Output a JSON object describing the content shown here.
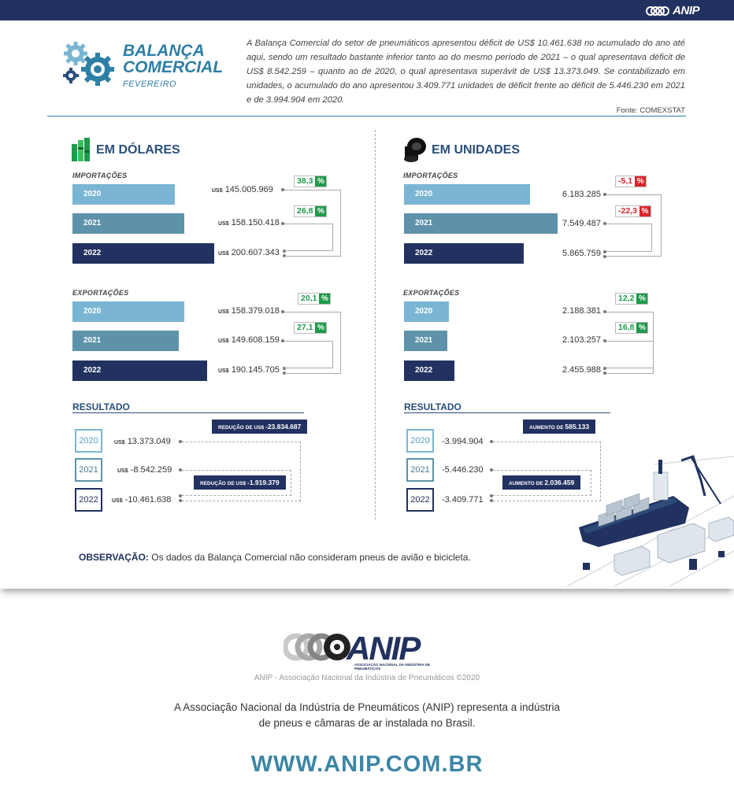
{
  "brand": {
    "logo_text": "ANIP",
    "logo_tagline": "ASSOCIAÇÃO NACIONAL DA INDÚSTRIA DE PNEUMÁTICOS"
  },
  "header": {
    "title_line1": "BALANÇA",
    "title_line2": "COMERCIAL",
    "subtitle": "FEVEREIRO",
    "intro": "A Balança Comercial do setor de pneumáticos apresentou déficit de US$ 10.461.638 no acumulado do ano até aqui, sendo um resultado bastante inferior tanto ao do mesmo período de 2021 – o qual apresentava déficit de US$ 8.542.259 – quanto ao de 2020, o qual apresentava superávit de US$ 13.373.049. Se contabilizado em unidades, o acumulado do ano apresentou 3.409.771 unidades de déficit frente ao déficit de 5.446.230 em 2021 e de 3.994.904 em 2020.",
    "source": "Fonte: COMEXSTAT"
  },
  "dolares": {
    "title": "EM DÓLARES",
    "currency": "US$",
    "imports": {
      "label": "IMPORTAÇÕES",
      "rows": [
        {
          "year": "2020",
          "value": "145.005.969",
          "amount": 145005969
        },
        {
          "year": "2021",
          "value": "158.150.418",
          "amount": 158150418
        },
        {
          "year": "2022",
          "value": "200.607.343",
          "amount": 200607343
        }
      ],
      "changes": [
        {
          "value": "38,3",
          "symbol": "%",
          "trend": "up"
        },
        {
          "value": "26,8",
          "symbol": "%",
          "trend": "up"
        }
      ]
    },
    "exports": {
      "label": "EXPORTAÇÕES",
      "rows": [
        {
          "year": "2020",
          "value": "158.379.018",
          "amount": 158379018
        },
        {
          "year": "2021",
          "value": "149.608.159",
          "amount": 149608159
        },
        {
          "year": "2022",
          "value": "190.145.705",
          "amount": 190145705
        }
      ],
      "changes": [
        {
          "value": "20,1",
          "symbol": "%",
          "trend": "up"
        },
        {
          "value": "27,1",
          "symbol": "%",
          "trend": "up"
        }
      ]
    },
    "result": {
      "label": "RESULTADO",
      "rows": [
        {
          "year": "2020",
          "value": "13.373.049"
        },
        {
          "year": "2021",
          "value": "-8.542.259"
        },
        {
          "year": "2022",
          "value": "-10.461.638"
        }
      ],
      "tags": [
        {
          "prefix": "REDUÇÃO DE",
          "currency": "US$",
          "value": "-23.834.687"
        },
        {
          "prefix": "REDUÇÃO DE",
          "currency": "US$",
          "value": "-1.919.379"
        }
      ]
    }
  },
  "unidades": {
    "title": "EM UNIDADES",
    "imports": {
      "label": "IMPORTAÇÕES",
      "rows": [
        {
          "year": "2020",
          "value": "6.183.285",
          "amount": 6183285
        },
        {
          "year": "2021",
          "value": "7.549.487",
          "amount": 7549487
        },
        {
          "year": "2022",
          "value": "5.865.759",
          "amount": 5865759
        }
      ],
      "changes": [
        {
          "value": "-5,1",
          "symbol": "%",
          "trend": "down"
        },
        {
          "value": "-22,3",
          "symbol": "%",
          "trend": "down"
        }
      ]
    },
    "exports": {
      "label": "EXPORTAÇÕES",
      "rows": [
        {
          "year": "2020",
          "value": "2.188.381",
          "amount": 2188381
        },
        {
          "year": "2021",
          "value": "2.103.257",
          "amount": 2103257
        },
        {
          "year": "2022",
          "value": "2.455.988",
          "amount": 2455988
        }
      ],
      "changes": [
        {
          "value": "12,2",
          "symbol": "%",
          "trend": "up"
        },
        {
          "value": "16,8",
          "symbol": "%",
          "trend": "up"
        }
      ]
    },
    "result": {
      "label": "RESULTADO",
      "rows": [
        {
          "year": "2020",
          "value": "-3.994.904"
        },
        {
          "year": "2021",
          "value": "-5.446.230"
        },
        {
          "year": "2022",
          "value": "-3.409.771"
        }
      ],
      "tags": [
        {
          "prefix": "AUMENTO DE",
          "value": "585.133"
        },
        {
          "prefix": "AUMENTO DE",
          "value": "2.036.459"
        }
      ]
    }
  },
  "observation": {
    "label": "OBSERVAÇÃO:",
    "text": "Os dados da Balança Comercial não consideram pneus de avião e bicicleta."
  },
  "footer": {
    "copyright": "ANIP - Associação Nacional da Indústria de Pneumáticos ©2020",
    "about_line1": "A Associação Nacional da Indústria de Pneumáticos (ANIP) representa a indústria",
    "about_line2": "de pneus e câmaras de ar instalada no Brasil.",
    "website": "WWW.ANIP.COM.BR"
  },
  "colors": {
    "navy": "#223260",
    "light_blue": "#7ab6d3",
    "mid_blue": "#5e92aa",
    "title_blue": "#2e7fa6",
    "up_green": "#1e9a4a",
    "down_red": "#d8262c"
  }
}
